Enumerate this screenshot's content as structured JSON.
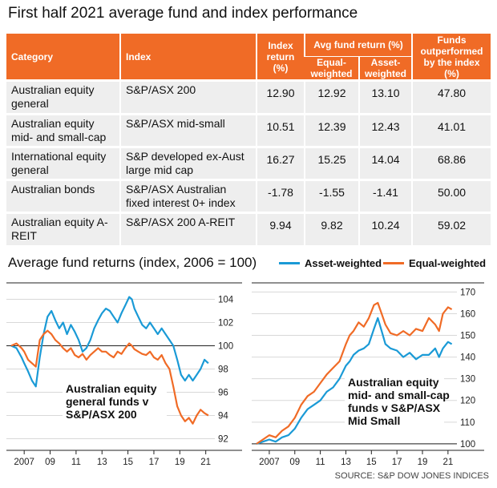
{
  "title": "First half 2021 average fund and index performance",
  "table": {
    "headers": {
      "category": "Category",
      "index": "Index",
      "index_return": "Index return (%)",
      "avg_fund_return": "Avg fund return (%)",
      "equal_weighted": "Equal-weighted",
      "asset_weighted": "Asset-weighted",
      "funds_outperformed": "Funds outperformed by the index (%)"
    },
    "rows": [
      {
        "category": "Australian equity general",
        "index": "S&P/ASX 200",
        "index_return": "12.90",
        "equal": "12.92",
        "asset": "13.10",
        "outperformed": "47.80"
      },
      {
        "category": "Australian equity mid- and small-cap",
        "index": "S&P/ASX mid-small",
        "index_return": "10.51",
        "equal": "12.39",
        "asset": "12.43",
        "outperformed": "41.01"
      },
      {
        "category": "International equity general",
        "index": "S&P developed ex-Aust large mid cap",
        "index_return": "16.27",
        "equal": "15.25",
        "asset": "14.04",
        "outperformed": "68.86"
      },
      {
        "category": "Australian bonds",
        "index": "S&P/ASX Australian fixed interest 0+ index",
        "index_return": "-1.78",
        "equal": "-1.55",
        "asset": "-1.41",
        "outperformed": "50.00"
      },
      {
        "category": "Australian equity A-REIT",
        "index": "S&P/ASX 200 A-REIT",
        "index_return": "9.94",
        "equal": "9.82",
        "asset": "10.24",
        "outperformed": "59.02"
      }
    ]
  },
  "subtitle": "Average fund returns (index, 2006 = 100)",
  "legend": {
    "asset": {
      "label": "Asset-weighted",
      "color": "#1a9ad6"
    },
    "equal": {
      "label": "Equal-weighted",
      "color": "#f06b26"
    }
  },
  "source": "SOURCE: S&P DOW JONES INDICES",
  "chart_data": [
    {
      "type": "line",
      "annotation": "Australian equity general funds v S&P/ASX 200",
      "x_ticks": [
        "2007",
        "09",
        "11",
        "13",
        "15",
        "17",
        "19",
        "21"
      ],
      "x_tick_values": [
        2007,
        2009,
        2011,
        2013,
        2015,
        2017,
        2019,
        2021
      ],
      "xlim": [
        2006,
        2021.7
      ],
      "y_ticks": [
        92,
        94,
        96,
        98,
        100,
        102,
        104
      ],
      "ylim": [
        91,
        105
      ],
      "baseline": 100,
      "series": [
        {
          "name": "Asset-weighted",
          "color": "#1a9ad6",
          "x": [
            2006.0,
            2006.4,
            2006.8,
            2007.0,
            2007.3,
            2007.6,
            2007.9,
            2008.2,
            2008.5,
            2008.8,
            2009.1,
            2009.4,
            2009.7,
            2010.0,
            2010.3,
            2010.6,
            2010.9,
            2011.2,
            2011.5,
            2011.8,
            2012.1,
            2012.4,
            2012.7,
            2013.0,
            2013.3,
            2013.6,
            2013.9,
            2014.2,
            2014.5,
            2014.8,
            2015.1,
            2015.3,
            2015.5,
            2015.8,
            2016.1,
            2016.4,
            2016.7,
            2017.0,
            2017.3,
            2017.6,
            2017.9,
            2018.2,
            2018.5,
            2018.8,
            2019.1,
            2019.4,
            2019.7,
            2020.0,
            2020.3,
            2020.6,
            2020.9,
            2021.2
          ],
          "y": [
            100.0,
            99.8,
            99.0,
            98.5,
            97.8,
            97.0,
            96.5,
            99.0,
            101.0,
            102.5,
            103.0,
            102.2,
            101.5,
            102.0,
            101.0,
            101.8,
            101.2,
            100.5,
            99.5,
            99.8,
            100.5,
            101.5,
            102.2,
            102.8,
            103.2,
            103.0,
            102.5,
            102.0,
            102.8,
            103.5,
            104.2,
            104.0,
            103.2,
            102.5,
            101.8,
            101.5,
            102.0,
            101.5,
            101.0,
            101.5,
            101.0,
            100.5,
            100.0,
            98.8,
            97.5,
            97.0,
            97.5,
            97.0,
            97.5,
            98.0,
            98.8,
            98.5
          ]
        },
        {
          "name": "Equal-weighted",
          "color": "#f06b26",
          "x": [
            2006.0,
            2006.4,
            2006.8,
            2007.0,
            2007.3,
            2007.6,
            2007.9,
            2008.2,
            2008.5,
            2008.8,
            2009.1,
            2009.4,
            2009.7,
            2010.0,
            2010.3,
            2010.6,
            2010.9,
            2011.2,
            2011.5,
            2011.8,
            2012.1,
            2012.4,
            2012.7,
            2013.0,
            2013.3,
            2013.6,
            2013.9,
            2014.2,
            2014.5,
            2014.8,
            2015.1,
            2015.3,
            2015.5,
            2015.8,
            2016.1,
            2016.4,
            2016.7,
            2017.0,
            2017.3,
            2017.6,
            2017.9,
            2018.2,
            2018.5,
            2018.8,
            2019.1,
            2019.4,
            2019.7,
            2020.0,
            2020.3,
            2020.6,
            2020.9,
            2021.2
          ],
          "y": [
            100.0,
            100.2,
            99.8,
            99.5,
            98.8,
            98.5,
            98.2,
            100.5,
            101.0,
            101.3,
            101.0,
            100.5,
            100.2,
            99.8,
            99.5,
            99.8,
            99.2,
            99.0,
            99.3,
            98.8,
            99.2,
            99.5,
            99.8,
            99.5,
            99.5,
            99.2,
            99.0,
            99.5,
            99.3,
            99.8,
            100.2,
            100.0,
            99.7,
            99.5,
            99.3,
            99.2,
            99.5,
            99.0,
            98.8,
            99.2,
            98.5,
            98.0,
            96.5,
            94.8,
            94.0,
            93.5,
            93.8,
            93.3,
            94.0,
            94.5,
            94.2,
            94.0
          ]
        }
      ]
    },
    {
      "type": "line",
      "annotation": "Australian equity mid- and small-cap funds v S&P/ASX Mid Small",
      "x_ticks": [
        "2007",
        "09",
        "11",
        "13",
        "15",
        "17",
        "19",
        "21"
      ],
      "x_tick_values": [
        2007,
        2009,
        2011,
        2013,
        2015,
        2017,
        2019,
        2021
      ],
      "xlim": [
        2006,
        2021.7
      ],
      "y_ticks": [
        100,
        110,
        120,
        130,
        140,
        150,
        160,
        170
      ],
      "ylim": [
        97,
        172
      ],
      "baseline": 100,
      "series": [
        {
          "name": "Asset-weighted",
          "color": "#1a9ad6",
          "x": [
            2006.0,
            2006.5,
            2007.0,
            2007.5,
            2008.0,
            2008.5,
            2009.0,
            2009.5,
            2010.0,
            2010.5,
            2011.0,
            2011.5,
            2012.0,
            2012.5,
            2013.0,
            2013.3,
            2013.6,
            2014.0,
            2014.4,
            2014.8,
            2015.2,
            2015.5,
            2015.8,
            2016.1,
            2016.5,
            2017.0,
            2017.5,
            2018.0,
            2018.5,
            2019.0,
            2019.5,
            2020.0,
            2020.3,
            2020.6,
            2021.0,
            2021.3
          ],
          "y": [
            100,
            101,
            102,
            101,
            103,
            104,
            107,
            112,
            116,
            118,
            120,
            124,
            126,
            130,
            136,
            138,
            141,
            143,
            144,
            146,
            153,
            158,
            152,
            146,
            144,
            143,
            140,
            142,
            139,
            141,
            141,
            144,
            140,
            144,
            147,
            146
          ]
        },
        {
          "name": "Equal-weighted",
          "color": "#f06b26",
          "x": [
            2006.0,
            2006.5,
            2007.0,
            2007.5,
            2008.0,
            2008.5,
            2009.0,
            2009.5,
            2010.0,
            2010.5,
            2011.0,
            2011.5,
            2012.0,
            2012.5,
            2013.0,
            2013.3,
            2013.6,
            2014.0,
            2014.4,
            2014.8,
            2015.2,
            2015.5,
            2015.8,
            2016.1,
            2016.5,
            2017.0,
            2017.5,
            2018.0,
            2018.5,
            2019.0,
            2019.5,
            2020.0,
            2020.3,
            2020.6,
            2021.0,
            2021.3
          ],
          "y": [
            100,
            102,
            104,
            103,
            106,
            108,
            112,
            118,
            122,
            124,
            128,
            132,
            135,
            138,
            146,
            150,
            152,
            156,
            154,
            158,
            164,
            165,
            160,
            155,
            151,
            150,
            152,
            150,
            153,
            152,
            158,
            155,
            152,
            160,
            163,
            162
          ]
        }
      ]
    }
  ]
}
